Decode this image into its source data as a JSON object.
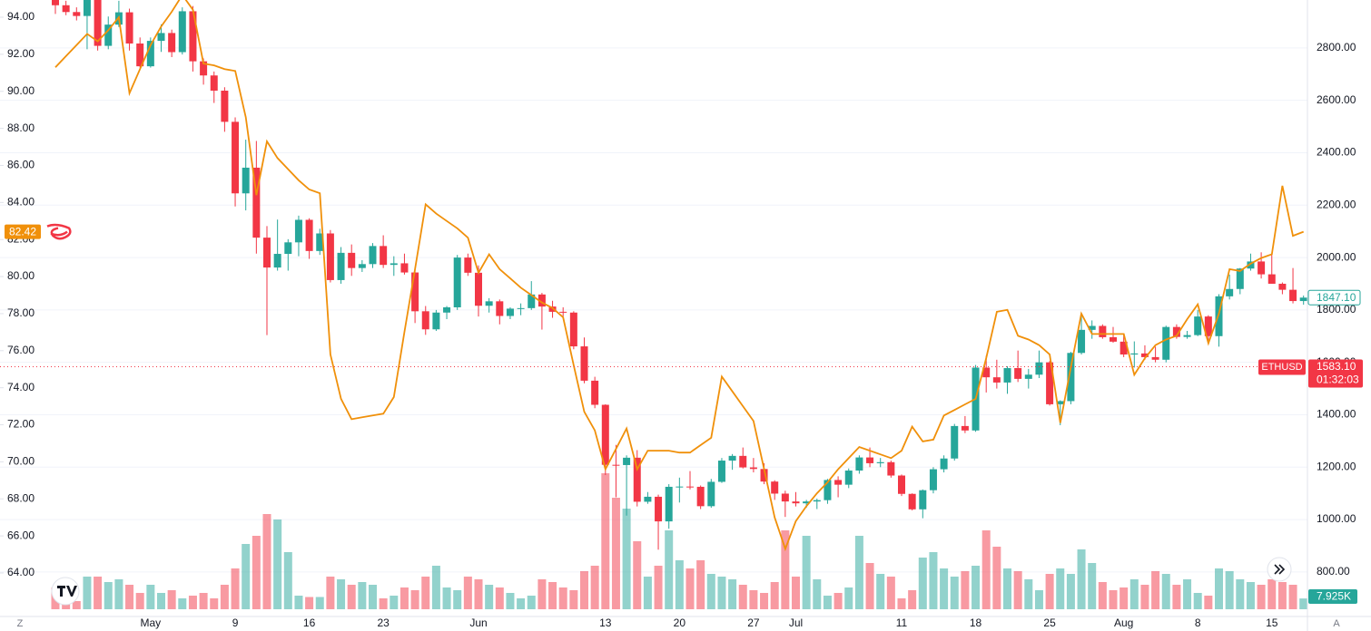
{
  "chart_data": {
    "type": "candlestick",
    "categories": [
      null,
      null,
      null,
      null,
      null,
      null,
      null,
      null,
      null,
      "May",
      null,
      null,
      null,
      null,
      null,
      null,
      null,
      "9",
      null,
      null,
      null,
      null,
      null,
      null,
      "16",
      null,
      null,
      null,
      null,
      null,
      null,
      "23",
      null,
      null,
      null,
      null,
      null,
      null,
      null,
      null,
      "Jun",
      null,
      null,
      null,
      null,
      null,
      null,
      null,
      null,
      null,
      null,
      null,
      "13",
      null,
      null,
      null,
      null,
      null,
      null,
      "20",
      null,
      null,
      null,
      null,
      null,
      null,
      "27",
      null,
      null,
      null,
      "Jul",
      null,
      null,
      null,
      null,
      null,
      null,
      null,
      null,
      null,
      "11",
      null,
      null,
      null,
      null,
      null,
      null,
      "18",
      null,
      null,
      null,
      null,
      null,
      null,
      "25",
      null,
      null,
      null,
      null,
      null,
      null,
      "Aug",
      null,
      null,
      null,
      null,
      null,
      null,
      "8",
      null,
      null,
      null,
      null,
      null,
      null,
      "15",
      null,
      null,
      null
    ],
    "ylim": [
      61.65,
      94.93
    ],
    "yticks": [
      {
        "value": 64,
        "label": "64.00"
      },
      {
        "value": 66,
        "label": "66.00"
      },
      {
        "value": 68,
        "label": "68.00"
      },
      {
        "value": 70,
        "label": "70.00"
      },
      {
        "value": 72,
        "label": "72.00"
      },
      {
        "value": 74,
        "label": "74.00"
      },
      {
        "value": 76,
        "label": "76.00"
      },
      {
        "value": 78,
        "label": "78.00"
      },
      {
        "value": 80,
        "label": "80.00"
      },
      {
        "value": 82,
        "label": "82.00"
      },
      {
        "value": 84,
        "label": "84.00"
      },
      {
        "value": 86,
        "label": "86.00"
      },
      {
        "value": 88,
        "label": "88.00"
      },
      {
        "value": 90,
        "label": "90.00"
      },
      {
        "value": 92,
        "label": "92.00"
      },
      {
        "value": 94,
        "label": "94.00"
      }
    ],
    "y2lim": [
      630,
      2983
    ],
    "y2ticks": [
      {
        "value": 800,
        "label": "800.00"
      },
      {
        "value": 1000,
        "label": "1000.00"
      },
      {
        "value": 1200,
        "label": "1200.00"
      },
      {
        "value": 1400,
        "label": "1400.00"
      },
      {
        "value": 1600,
        "label": "1600.00"
      },
      {
        "value": 1800,
        "label": "1800.00"
      },
      {
        "value": 2000,
        "label": "2000.00"
      },
      {
        "value": 2200,
        "label": "2200.00"
      },
      {
        "value": 2400,
        "label": "2400.00"
      },
      {
        "value": 2600,
        "label": "2600.00"
      },
      {
        "value": 2800,
        "label": "2800.00"
      }
    ],
    "grid": true,
    "candles": {
      "axis": "y2",
      "up_color": "#26a69a",
      "down_color": "#f23645",
      "open": [
        2985,
        2963,
        2937,
        2922,
        3008,
        2808,
        2889,
        2936,
        2817,
        2730,
        2827,
        2857,
        2784,
        2940,
        2749,
        2695,
        2637,
        2518,
        2245,
        2343,
        2076,
        1962,
        2014,
        2058,
        2144,
        2025,
        2092,
        1914,
        2018,
        1960,
        1975,
        2044,
        1972,
        1978,
        1943,
        1795,
        1726,
        1790,
        1810,
        2000,
        1942,
        1816,
        1833,
        1777,
        1805,
        1807,
        1859,
        1813,
        1793,
        1790,
        1661,
        1530,
        1438,
        1209,
        1208,
        1236,
        1068,
        1087,
        993,
        1125,
        1126,
        1125,
        1051,
        1144,
        1225,
        1243,
        1199,
        1193,
        1145,
        1099,
        1069,
        1062,
        1069,
        1074,
        1151,
        1133,
        1187,
        1237,
        1215,
        1219,
        1168,
        1098,
        1039,
        1112,
        1192,
        1233,
        1357,
        1340,
        1580,
        1543,
        1523,
        1578,
        1537,
        1553,
        1600,
        1440,
        1452,
        1636,
        1724,
        1739,
        1696,
        1679,
        1630,
        1634,
        1620,
        1610,
        1735,
        1697,
        1704,
        1775,
        1700,
        1852,
        1880,
        1958,
        1985,
        1936,
        1900,
        1877,
        1834
      ],
      "high": [
        3028,
        2980,
        2955,
        3025,
        3038,
        2920,
        2980,
        2950,
        2840,
        2840,
        2890,
        2870,
        2955,
        2960,
        2760,
        2710,
        2650,
        2535,
        2450,
        2445,
        2120,
        2145,
        2070,
        2160,
        2150,
        2110,
        2105,
        2040,
        2050,
        1990,
        2055,
        2085,
        2005,
        2015,
        1960,
        1815,
        1800,
        1815,
        2010,
        2015,
        1970,
        1845,
        1840,
        1810,
        1825,
        1910,
        1865,
        1835,
        1810,
        1795,
        1695,
        1545,
        1440,
        1285,
        1245,
        1265,
        1105,
        1095,
        1135,
        1160,
        1185,
        1130,
        1155,
        1235,
        1250,
        1275,
        1235,
        1215,
        1150,
        1110,
        1105,
        1075,
        1080,
        1155,
        1165,
        1195,
        1245,
        1275,
        1235,
        1225,
        1172,
        1100,
        1115,
        1200,
        1245,
        1365,
        1395,
        1590,
        1625,
        1610,
        1585,
        1645,
        1575,
        1645,
        1605,
        1455,
        1640,
        1785,
        1760,
        1745,
        1735,
        1705,
        1680,
        1665,
        1660,
        1740,
        1745,
        1720,
        1800,
        1780,
        1860,
        1935,
        1960,
        2015,
        2020,
        2010,
        1905,
        1960,
        1855
      ],
      "low": [
        2930,
        2925,
        2905,
        2795,
        2790,
        2795,
        2880,
        2790,
        2725,
        2725,
        2785,
        2765,
        2775,
        2710,
        2660,
        2590,
        2480,
        2195,
        2180,
        2015,
        1704,
        1950,
        1950,
        2005,
        1995,
        2010,
        1905,
        1900,
        1930,
        1945,
        1960,
        1960,
        1930,
        1935,
        1750,
        1705,
        1720,
        1765,
        1800,
        1930,
        1775,
        1790,
        1745,
        1765,
        1780,
        1800,
        1725,
        1770,
        1775,
        1650,
        1520,
        1425,
        1170,
        1085,
        1015,
        1050,
        1060,
        885,
        965,
        1065,
        1115,
        1040,
        1045,
        1140,
        1190,
        1195,
        1180,
        1135,
        1075,
        1010,
        1050,
        1045,
        1040,
        1060,
        1085,
        1120,
        1175,
        1200,
        1200,
        1160,
        1090,
        1035,
        1005,
        1100,
        1180,
        1225,
        1330,
        1335,
        1485,
        1500,
        1480,
        1525,
        1500,
        1540,
        1435,
        1360,
        1440,
        1630,
        1690,
        1690,
        1675,
        1620,
        1580,
        1610,
        1600,
        1600,
        1690,
        1690,
        1700,
        1680,
        1660,
        1840,
        1860,
        1950,
        1920,
        1900,
        1860,
        1825,
        1820
      ],
      "close": [
        2963,
        2937,
        2922,
        3008,
        2808,
        2889,
        2936,
        2817,
        2730,
        2827,
        2857,
        2784,
        2940,
        2749,
        2695,
        2637,
        2518,
        2245,
        2343,
        2076,
        1962,
        2014,
        2058,
        2144,
        2025,
        2092,
        1914,
        2018,
        1960,
        1975,
        2044,
        1972,
        1978,
        1943,
        1795,
        1726,
        1790,
        1810,
        2000,
        1942,
        1816,
        1833,
        1777,
        1805,
        1807,
        1859,
        1813,
        1793,
        1790,
        1661,
        1530,
        1438,
        1209,
        1208,
        1236,
        1068,
        1087,
        993,
        1125,
        1126,
        1125,
        1051,
        1144,
        1225,
        1243,
        1199,
        1193,
        1145,
        1099,
        1069,
        1062,
        1069,
        1074,
        1151,
        1133,
        1187,
        1237,
        1215,
        1219,
        1168,
        1098,
        1039,
        1112,
        1192,
        1233,
        1357,
        1340,
        1580,
        1543,
        1523,
        1578,
        1537,
        1553,
        1600,
        1440,
        1452,
        1636,
        1724,
        1739,
        1696,
        1679,
        1630,
        1634,
        1620,
        1610,
        1735,
        1697,
        1704,
        1775,
        1700,
        1852,
        1880,
        1958,
        1985,
        1936,
        1900,
        1877,
        1834,
        1847.1
      ],
      "price_label": {
        "value": 1847.1,
        "label": "1847.10"
      }
    },
    "marker": {
      "name": "ETHUSD",
      "value": 1583.1,
      "label": "1583.10",
      "countdown": "01:32:03",
      "color": "#f23645"
    },
    "overlay": {
      "type": "line",
      "axis": "y",
      "color": "#f0900a",
      "values": [
        91.3,
        91.9,
        92.5,
        93.1,
        92.7,
        93.3,
        94.0,
        89.9,
        91.2,
        92.5,
        93.5,
        94.3,
        95.2,
        94.4,
        91.5,
        91.4,
        91.2,
        91.1,
        88.6,
        84.4,
        87.3,
        86.4,
        85.8,
        85.2,
        84.7,
        84.5,
        75.8,
        73.4,
        72.3,
        72.4,
        72.5,
        72.6,
        73.5,
        77.0,
        80.4,
        83.9,
        83.4,
        83.0,
        82.6,
        82.1,
        80.2,
        81.2,
        80.4,
        79.9,
        79.4,
        79.0,
        78.6,
        78.3,
        77.8,
        75.2,
        72.7,
        71.7,
        69.6,
        70.7,
        71.8,
        69.6,
        70.6,
        70.6,
        70.6,
        70.5,
        70.5,
        70.9,
        71.3,
        74.6,
        73.8,
        73.0,
        72.2,
        69.6,
        67.0,
        65.3,
        66.8,
        67.6,
        68.3,
        68.9,
        69.6,
        70.2,
        70.8,
        70.6,
        70.4,
        70.2,
        70.6,
        71.9,
        71.1,
        71.2,
        72.5,
        72.8,
        73.1,
        73.4,
        75.6,
        78.1,
        78.2,
        76.8,
        76.6,
        76.3,
        75.8,
        72.1,
        75.1,
        78.0,
        76.9,
        76.9,
        76.9,
        76.9,
        74.7,
        75.6,
        76.3,
        76.6,
        76.8,
        77.7,
        78.5,
        76.4,
        78.0,
        80.4,
        80.3,
        80.7,
        81.0,
        81.2,
        84.9,
        82.2,
        82.42
      ],
      "last_label": {
        "value": 82.42,
        "label": "82.42"
      }
    },
    "volume": {
      "values": [
        16,
        12,
        6,
        24,
        24,
        20,
        22,
        18,
        12,
        18,
        12,
        14,
        8,
        10,
        12,
        8,
        18,
        30,
        48,
        54,
        70,
        66,
        42,
        10,
        9,
        9,
        24,
        22,
        18,
        20,
        18,
        8,
        10,
        16,
        14,
        24,
        32,
        16,
        14,
        24,
        22,
        18,
        16,
        12,
        8,
        10,
        22,
        20,
        16,
        14,
        28,
        32,
        100,
        82,
        74,
        50,
        24,
        32,
        58,
        36,
        30,
        36,
        26,
        24,
        22,
        18,
        14,
        12,
        20,
        58,
        24,
        54,
        22,
        10,
        12,
        16,
        54,
        34,
        26,
        24,
        8,
        14,
        38,
        42,
        30,
        24,
        28,
        32,
        58,
        46,
        30,
        28,
        22,
        14,
        26,
        30,
        26,
        44,
        34,
        20,
        14,
        16,
        22,
        18,
        28,
        26,
        18,
        22,
        12,
        10,
        30,
        28,
        22,
        20,
        18,
        22,
        20,
        18,
        7.925
      ],
      "last_label": {
        "value": 7.925,
        "label": "7.925K"
      }
    }
  },
  "ui": {
    "left_button": "Z",
    "right_button": "A"
  }
}
